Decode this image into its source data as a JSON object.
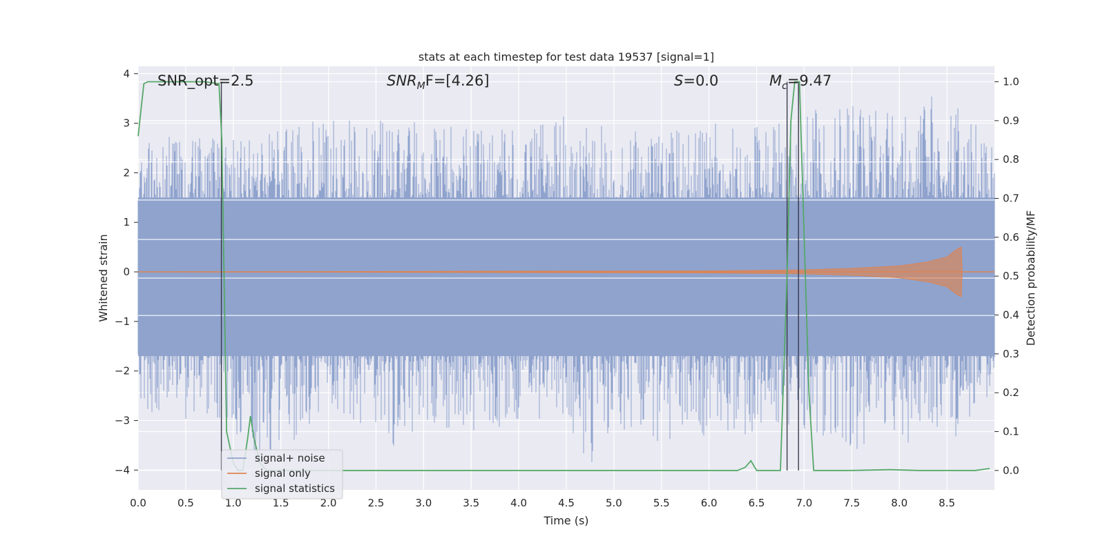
{
  "chart_data": {
    "type": "line",
    "title": "stats at each timestep for test data 19537 [signal=1]",
    "xlabel": "Time (s)",
    "ylabel": "Whitened strain",
    "y2label": "Detection probability/MF",
    "xlim": [
      0,
      9.0
    ],
    "ylim": [
      -4.4,
      4.15
    ],
    "y2lim": [
      -0.05,
      1.04
    ],
    "x_ticks": [
      "0.0",
      "0.5",
      "1.0",
      "1.5",
      "2.0",
      "2.5",
      "3.0",
      "3.5",
      "4.0",
      "4.5",
      "5.0",
      "5.5",
      "6.0",
      "6.5",
      "7.0",
      "7.5",
      "8.0",
      "8.5"
    ],
    "y_ticks": [
      "4",
      "3",
      "2",
      "1",
      "0",
      "−1",
      "−2",
      "−3",
      "−4"
    ],
    "y2_ticks": [
      "1.0",
      "0.9",
      "0.8",
      "0.7",
      "0.6",
      "0.5",
      "0.4",
      "0.3",
      "0.2",
      "0.1",
      "0.0"
    ],
    "grid": true,
    "legend_position": "lower-left",
    "annotations": {
      "snr_opt": "SNR_opt=2.5",
      "snr_mf_base": "SNR",
      "snr_mf_sub": "M",
      "snr_mf_rest": "F=[4.26]",
      "s_sym": "S",
      "s_rest": "=0.0",
      "mc_base": "M",
      "mc_sub": "c",
      "mc_rest": "=9.47"
    },
    "vertical_lines_x": [
      0.875,
      6.82,
      6.94
    ],
    "series": [
      {
        "name": "signal+ noise",
        "color": "#8fa3cd",
        "description_values": {
          "envelope_x": [
            0.0,
            0.5,
            0.85,
            1.2,
            2.0,
            2.5,
            2.65,
            3.0,
            3.5,
            4.0,
            4.5,
            4.75,
            5.0,
            5.5,
            6.0,
            6.5,
            7.0,
            7.5,
            8.0,
            8.5,
            9.0
          ],
          "upper": [
            2.6,
            2.8,
            2.7,
            2.9,
            3.2,
            2.9,
            3.55,
            2.9,
            3.0,
            2.9,
            3.2,
            2.9,
            3.0,
            2.8,
            3.1,
            3.0,
            3.2,
            3.6,
            3.5,
            3.6,
            2.9
          ],
          "lower": [
            -2.9,
            -3.0,
            -3.1,
            -4.0,
            -3.0,
            -3.2,
            -3.7,
            -3.2,
            -3.3,
            -3.1,
            -3.2,
            -4.0,
            -3.1,
            -3.5,
            -3.3,
            -3.3,
            -3.2,
            -3.6,
            -3.5,
            -3.4,
            -3.0
          ]
        }
      },
      {
        "name": "signal only",
        "color": "#dd8452",
        "x": [
          0.0,
          6.0,
          7.0,
          7.5,
          8.0,
          8.3,
          8.5,
          8.6,
          8.65,
          8.66,
          9.0
        ],
        "upper": [
          0.0,
          0.02,
          0.04,
          0.07,
          0.12,
          0.2,
          0.3,
          0.45,
          0.5,
          0.0,
          0.0
        ],
        "lower": [
          0.0,
          -0.02,
          -0.04,
          -0.07,
          -0.12,
          -0.2,
          -0.3,
          -0.45,
          -0.5,
          0.0,
          0.0
        ]
      },
      {
        "name": "signal statistics",
        "color": "#55a868",
        "x": [
          0.0,
          0.06,
          0.1,
          0.3,
          0.5,
          0.7,
          0.85,
          0.88,
          0.93,
          1.0,
          1.05,
          1.1,
          1.15,
          1.18,
          1.22,
          1.28,
          1.35,
          1.5,
          2.0,
          3.0,
          4.0,
          5.0,
          6.0,
          6.3,
          6.38,
          6.44,
          6.5,
          6.6,
          6.75,
          6.82,
          6.86,
          6.9,
          6.95,
          7.0,
          7.05,
          7.1,
          7.5,
          7.9,
          8.2,
          8.8,
          8.95
        ],
        "y": [
          0.86,
          0.995,
          1.0,
          1.0,
          1.0,
          1.0,
          0.995,
          0.85,
          0.1,
          0.02,
          0.0,
          0.0,
          0.08,
          0.14,
          0.08,
          0.02,
          0.0,
          0.0,
          0.0,
          0.0,
          0.0,
          0.0,
          0.0,
          0.0,
          0.008,
          0.025,
          0.0,
          0.0,
          0.0,
          0.5,
          0.9,
          1.0,
          1.0,
          0.6,
          0.2,
          0.0,
          0.0,
          0.002,
          0.0,
          0.0,
          0.005
        ]
      }
    ]
  }
}
